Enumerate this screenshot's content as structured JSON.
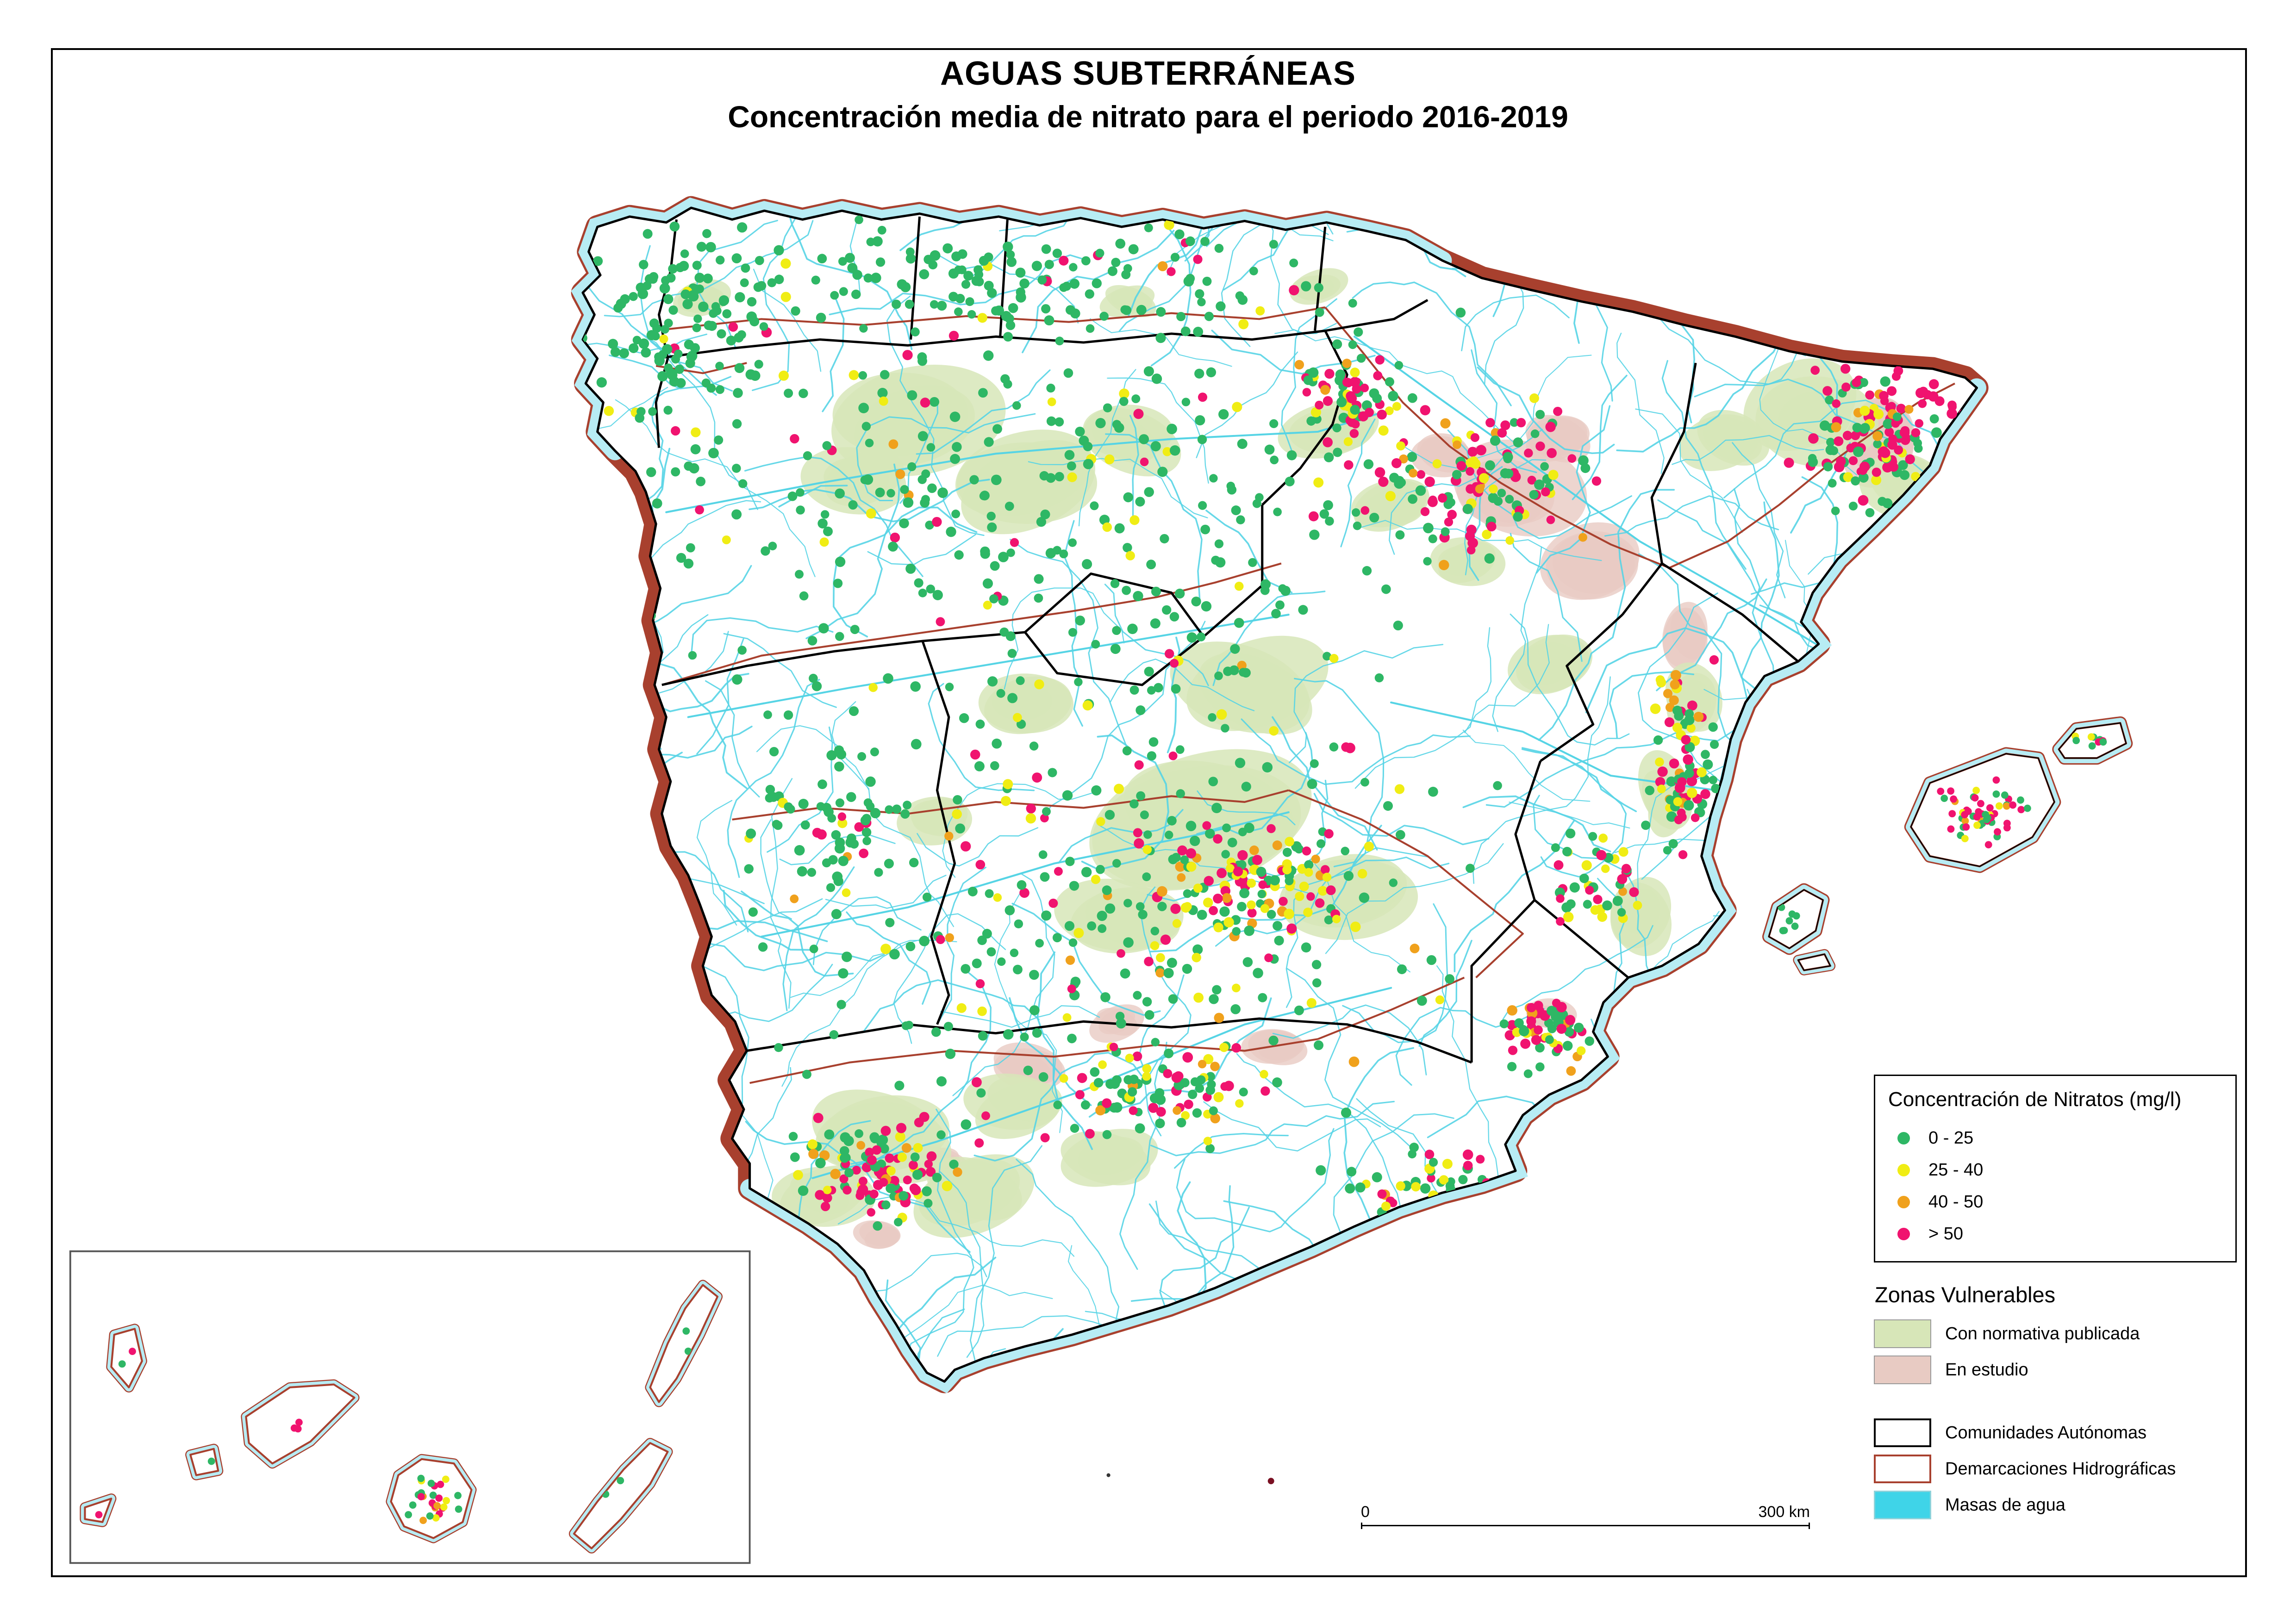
{
  "header": {
    "title": "AGUAS SUBTERRÁNEAS",
    "subtitle": "Concentración media de nitrato para el periodo 2016-2019"
  },
  "legend": {
    "nitrates": {
      "title": "Concentración de Nitratos (mg/l)",
      "classes": [
        {
          "label": "0 - 25",
          "color": "#2eb765"
        },
        {
          "label": "25 - 40",
          "color": "#f0ed14"
        },
        {
          "label": "40 - 50",
          "color": "#f0a11c"
        },
        {
          "label": "> 50",
          "color": "#f0136f"
        }
      ]
    },
    "zones": {
      "title": "Zonas Vulnerables",
      "classes": [
        {
          "label": "Con normativa publicada",
          "color": "#d7e6b8"
        },
        {
          "label": "En estudio",
          "color": "#e8cbc3"
        }
      ]
    },
    "layers": [
      {
        "label": "Comunidades Autónomas",
        "fill": "#ffffff",
        "border": "#000000"
      },
      {
        "label": "Demarcaciones Hidrográficas",
        "fill": "#ffffff",
        "border": "#a8402e"
      },
      {
        "label": "Masas de agua",
        "fill": "#3fd4e8",
        "border": "#8fd2da"
      }
    ]
  },
  "scalebar": {
    "start_label": "0",
    "end_label": "300 km"
  },
  "map": {
    "coast_water": "#b7ecf4",
    "river": "#56d4e5",
    "basin_line": "#a8402e",
    "admin_line": "#000000",
    "background": "#ffffff"
  }
}
